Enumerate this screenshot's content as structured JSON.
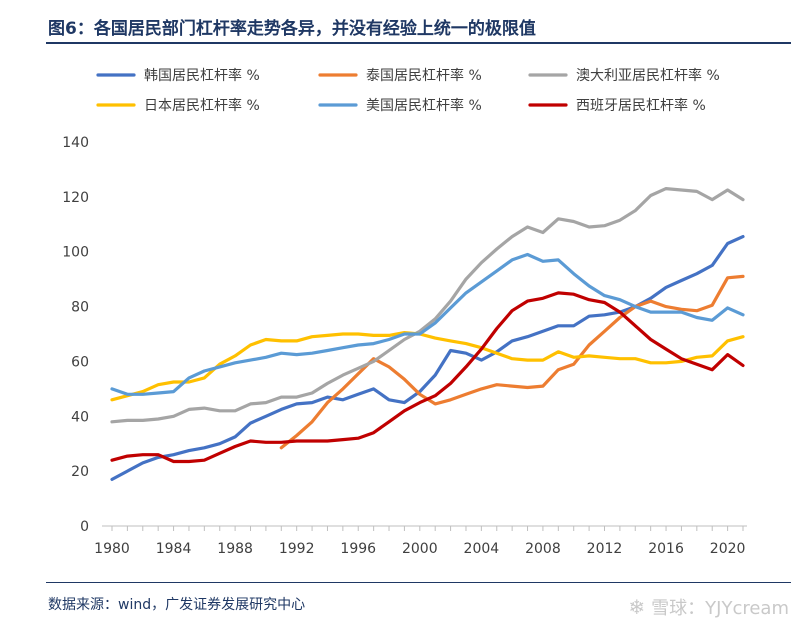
{
  "figure": {
    "title": "图6：各国居民部门杠杆率走势各异，并没有经验上统一的极限值",
    "source": "数据来源：wind，广发证券发展研究中心",
    "watermark": "雪球：YJYcream",
    "watermark_icon": "snowball-logo-icon"
  },
  "chart_data": {
    "type": "line",
    "ylim": [
      0,
      140
    ],
    "yticks": [
      0,
      20,
      40,
      60,
      80,
      100,
      120,
      140
    ],
    "xlim": [
      1980,
      2021
    ],
    "xticks": [
      1980,
      1984,
      1988,
      1992,
      1996,
      2000,
      2004,
      2008,
      2012,
      2016,
      2020
    ],
    "grid": false,
    "legend_position": "top",
    "series": [
      {
        "name": "韩国居民杠杆率 %",
        "color": "#4472c4",
        "x": [
          1980,
          1981,
          1982,
          1983,
          1984,
          1985,
          1986,
          1987,
          1988,
          1989,
          1990,
          1991,
          1992,
          1993,
          1994,
          1995,
          1996,
          1997,
          1998,
          1999,
          2000,
          2001,
          2002,
          2003,
          2004,
          2005,
          2006,
          2007,
          2008,
          2009,
          2010,
          2011,
          2012,
          2013,
          2014,
          2015,
          2016,
          2017,
          2018,
          2019,
          2020,
          2021
        ],
        "values": [
          17,
          20,
          23,
          25,
          26,
          27.5,
          28.5,
          30,
          32.5,
          37.5,
          40,
          42.5,
          44.5,
          45,
          47,
          46,
          48,
          50,
          46,
          45,
          49,
          55,
          64,
          63,
          60.5,
          63.5,
          67.5,
          69,
          71,
          73,
          73,
          76.5,
          77,
          78,
          80,
          83,
          87,
          89.5,
          92,
          95,
          103,
          105.5
        ]
      },
      {
        "name": "泰国居民杠杆率 %",
        "color": "#ed7d31",
        "x": [
          1991,
          1992,
          1993,
          1994,
          1995,
          1996,
          1997,
          1998,
          1999,
          2000,
          2001,
          2002,
          2003,
          2004,
          2005,
          2006,
          2007,
          2008,
          2009,
          2010,
          2011,
          2012,
          2013,
          2014,
          2015,
          2016,
          2017,
          2018,
          2019,
          2020,
          2021
        ],
        "values": [
          28.5,
          33,
          38,
          45,
          50,
          55.5,
          61,
          58,
          53.5,
          48,
          44.5,
          46,
          48,
          50,
          51.5,
          51,
          50.5,
          51,
          57,
          59,
          66,
          71,
          76,
          80,
          82,
          80,
          79,
          78.5,
          80.5,
          90.5,
          91
        ]
      },
      {
        "name": "澳大利亚居民杠杆率 %",
        "color": "#a5a5a5",
        "x": [
          1980,
          1981,
          1982,
          1983,
          1984,
          1985,
          1986,
          1987,
          1988,
          1989,
          1990,
          1991,
          1992,
          1993,
          1994,
          1995,
          1996,
          1997,
          1998,
          1999,
          2000,
          2001,
          2002,
          2003,
          2004,
          2005,
          2006,
          2007,
          2008,
          2009,
          2010,
          2011,
          2012,
          2013,
          2014,
          2015,
          2016,
          2017,
          2018,
          2019,
          2020,
          2021
        ],
        "values": [
          38,
          38.5,
          38.5,
          39,
          40,
          42.5,
          43,
          42,
          42,
          44.5,
          45,
          47,
          47,
          48.5,
          52,
          55,
          57.5,
          60,
          64,
          68,
          71,
          75.5,
          82,
          90,
          96,
          101,
          105.5,
          109,
          107,
          112,
          111,
          109,
          109.5,
          111.5,
          115,
          120.5,
          123,
          122.5,
          122,
          119,
          122.5,
          119
        ]
      },
      {
        "name": "日本居民杠杆率 %",
        "color": "#ffc000",
        "x": [
          1980,
          1981,
          1982,
          1983,
          1984,
          1985,
          1986,
          1987,
          1988,
          1989,
          1990,
          1991,
          1992,
          1993,
          1994,
          1995,
          1996,
          1997,
          1998,
          1999,
          2000,
          2001,
          2002,
          2003,
          2004,
          2005,
          2006,
          2007,
          2008,
          2009,
          2010,
          2011,
          2012,
          2013,
          2014,
          2015,
          2016,
          2017,
          2018,
          2019,
          2020,
          2021
        ],
        "values": [
          46,
          47.5,
          49,
          51.5,
          52.5,
          52.5,
          54,
          59,
          62,
          66,
          68,
          67.5,
          67.5,
          69,
          69.5,
          70,
          70,
          69.5,
          69.5,
          70.5,
          70,
          68.5,
          67.5,
          66.5,
          65,
          63,
          61,
          60.5,
          60.5,
          63.5,
          61.5,
          62,
          61.5,
          61,
          61,
          59.5,
          59.5,
          60,
          61.5,
          62,
          67.5,
          69
        ]
      },
      {
        "name": "美国居民杠杆率 %",
        "color": "#5b9bd5",
        "x": [
          1980,
          1981,
          1982,
          1983,
          1984,
          1985,
          1986,
          1987,
          1988,
          1989,
          1990,
          1991,
          1992,
          1993,
          1994,
          1995,
          1996,
          1997,
          1998,
          1999,
          2000,
          2001,
          2002,
          2003,
          2004,
          2005,
          2006,
          2007,
          2008,
          2009,
          2010,
          2011,
          2012,
          2013,
          2014,
          2015,
          2016,
          2017,
          2018,
          2019,
          2020,
          2021
        ],
        "values": [
          50,
          48,
          48,
          48.5,
          49,
          54,
          56.5,
          58,
          59.5,
          60.5,
          61.5,
          63,
          62.5,
          63,
          64,
          65,
          66,
          66.5,
          68,
          70,
          70,
          74,
          79.5,
          85,
          89,
          93,
          97,
          99,
          96.5,
          97,
          92,
          87.5,
          84,
          82.5,
          80,
          78,
          78,
          78,
          76,
          75,
          79.5,
          77
        ]
      },
      {
        "name": "西班牙居民杠杆率 %",
        "color": "#c00000",
        "x": [
          1980,
          1981,
          1982,
          1983,
          1984,
          1985,
          1986,
          1987,
          1988,
          1989,
          1990,
          1991,
          1992,
          1993,
          1994,
          1995,
          1996,
          1997,
          1998,
          1999,
          2000,
          2001,
          2002,
          2003,
          2004,
          2005,
          2006,
          2007,
          2008,
          2009,
          2010,
          2011,
          2012,
          2013,
          2014,
          2015,
          2016,
          2017,
          2018,
          2019,
          2020,
          2021
        ],
        "values": [
          24,
          25.5,
          26,
          26,
          23.5,
          23.5,
          24,
          26.5,
          29,
          31,
          30.5,
          30.5,
          31,
          31,
          31,
          31.5,
          32,
          34,
          38,
          42,
          45,
          47.5,
          52,
          58,
          64.5,
          72,
          78.5,
          82,
          83,
          85,
          84.5,
          82.5,
          81.5,
          78,
          73,
          68,
          64.5,
          61,
          59,
          57,
          62.5,
          58.5
        ]
      }
    ]
  }
}
